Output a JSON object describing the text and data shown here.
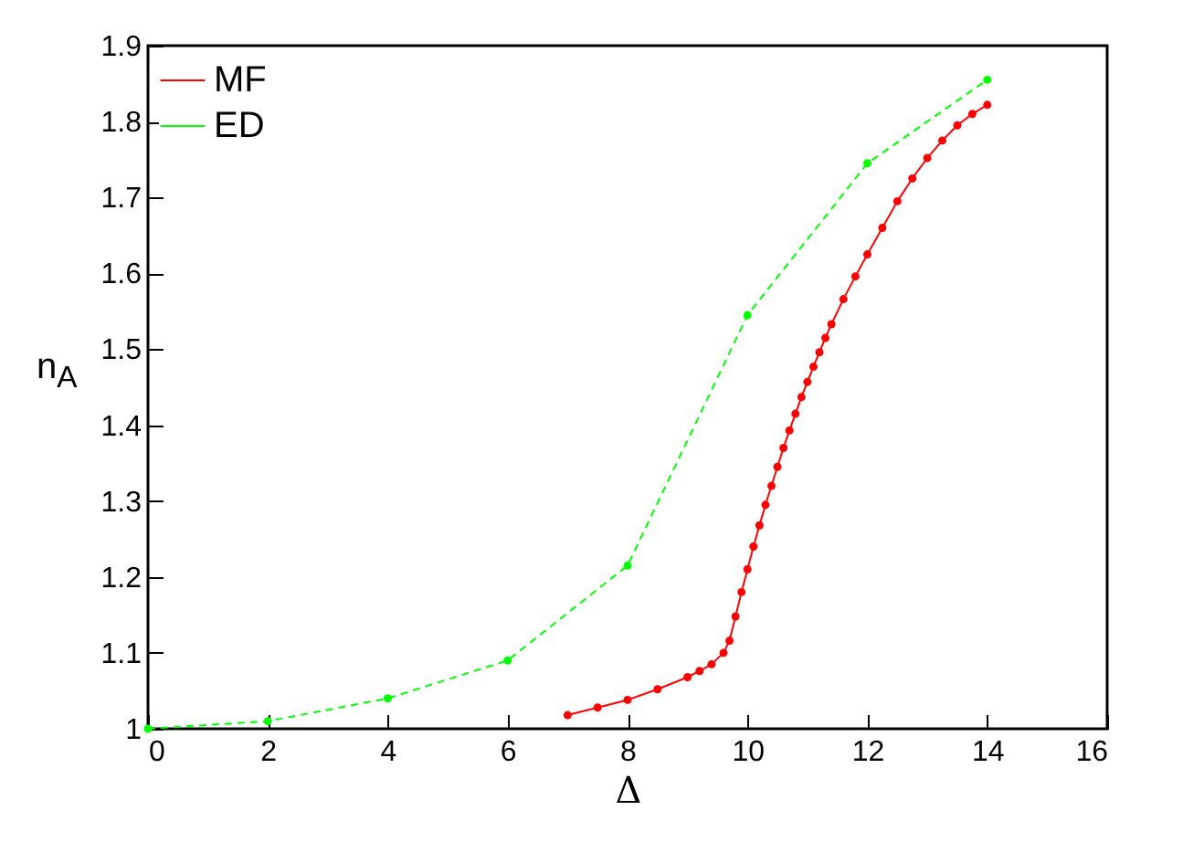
{
  "chart_data": {
    "type": "line",
    "xlabel": "Δ",
    "ylabel": "n$_{A}$",
    "xlim": [
      0,
      16
    ],
    "ylim": [
      1,
      1.9
    ],
    "xticks": [
      0,
      2,
      4,
      6,
      8,
      10,
      12,
      14,
      16
    ],
    "yticks": [
      1,
      1.1,
      1.2,
      1.3,
      1.4,
      1.5,
      1.6,
      1.7,
      1.8,
      1.9
    ],
    "grid": false,
    "legend": "top left",
    "marker": "circle",
    "series": [
      {
        "name": "MF",
        "color": "#ff0000",
        "line_style": "solid",
        "x": [
          7,
          7.5,
          8,
          8.5,
          9,
          9.2,
          9.4,
          9.6,
          9.7,
          9.8,
          9.9,
          10,
          10.1,
          10.2,
          10.3,
          10.4,
          10.5,
          10.6,
          10.7,
          10.8,
          10.9,
          11,
          11.1,
          11.2,
          11.3,
          11.4,
          11.6,
          11.8,
          12,
          12.25,
          12.5,
          12.75,
          13,
          13.25,
          13.5,
          13.75,
          14
        ],
        "values": [
          1.018,
          1.028,
          1.038,
          1.052,
          1.068,
          1.076,
          1.085,
          1.1,
          1.116,
          1.148,
          1.18,
          1.21,
          1.24,
          1.268,
          1.295,
          1.32,
          1.345,
          1.37,
          1.393,
          1.415,
          1.437,
          1.457,
          1.477,
          1.496,
          1.515,
          1.533,
          1.566,
          1.596,
          1.625,
          1.66,
          1.695,
          1.725,
          1.752,
          1.775,
          1.795,
          1.81,
          1.822
        ]
      },
      {
        "name": "ED",
        "color": "#00ff00",
        "line_style": "dashed",
        "x": [
          0,
          2,
          4,
          6,
          8,
          10,
          12,
          14
        ],
        "values": [
          1,
          1.01,
          1.04,
          1.09,
          1.215,
          1.545,
          1.745,
          1.855
        ]
      }
    ]
  }
}
